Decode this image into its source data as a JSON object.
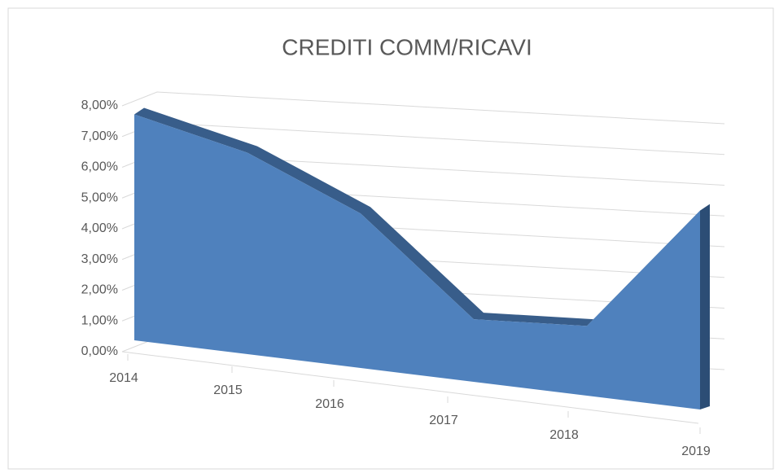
{
  "chart_data": {
    "type": "area",
    "title": "CREDITI COMM/RICAVI",
    "categories": [
      "2014",
      "2015",
      "2016",
      "2017",
      "2018",
      "2019"
    ],
    "values": [
      7.5,
      6.6,
      5.0,
      2.0,
      2.2,
      6.2
    ],
    "color": "#4f81bd",
    "ylim": [
      0,
      8
    ],
    "yticks": [
      {
        "value": 0,
        "label": "0,00%"
      },
      {
        "value": 1,
        "label": "1,00%"
      },
      {
        "value": 2,
        "label": "2,00%"
      },
      {
        "value": 3,
        "label": "3,00%"
      },
      {
        "value": 4,
        "label": "4,00%"
      },
      {
        "value": 5,
        "label": "5,00%"
      },
      {
        "value": 6,
        "label": "6,00%"
      },
      {
        "value": 7,
        "label": "7,00%"
      },
      {
        "value": 8,
        "label": "8,00%"
      }
    ],
    "grid": true
  }
}
